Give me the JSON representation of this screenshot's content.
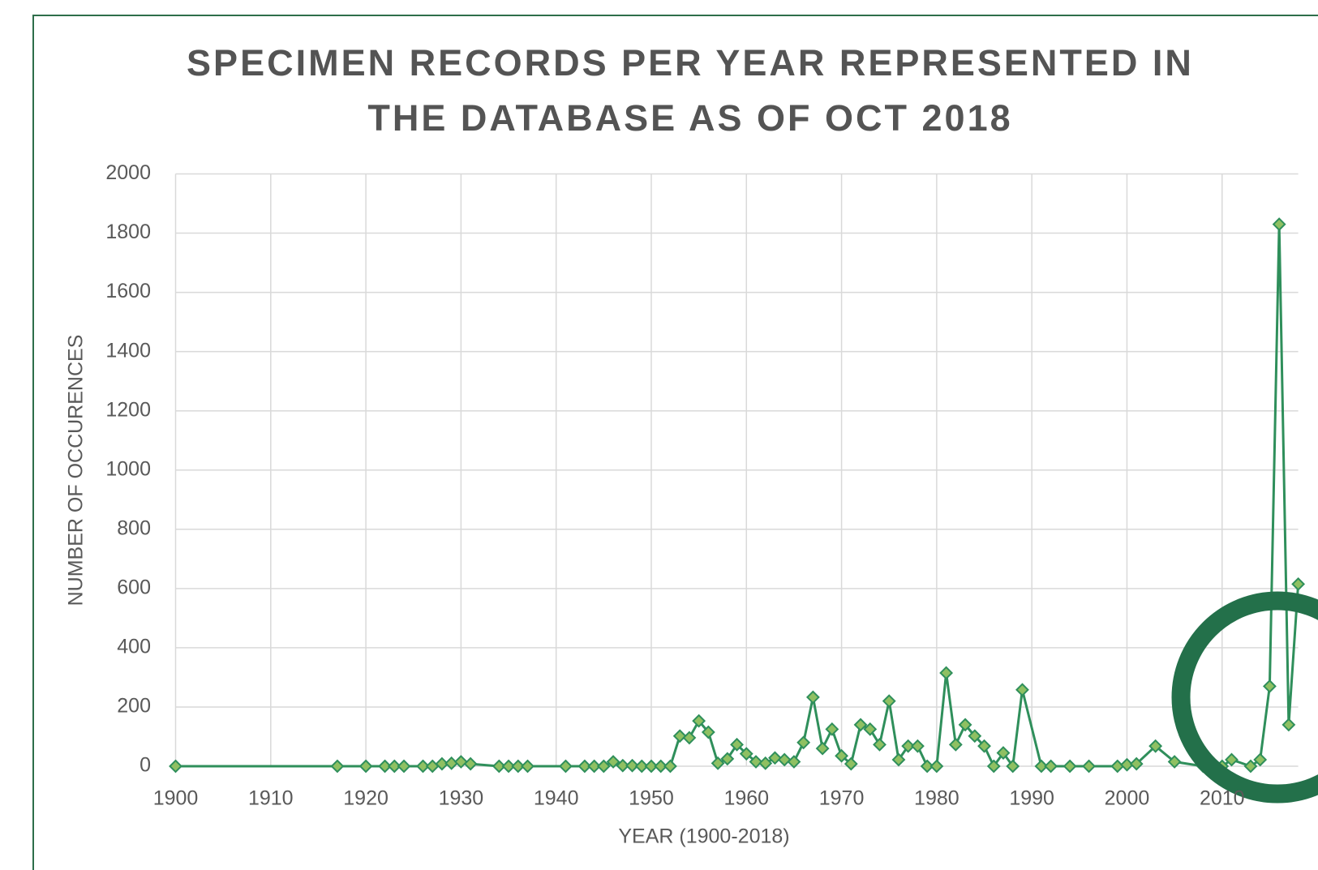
{
  "chart_data": {
    "type": "line",
    "title": "SPECIMEN RECORDS PER YEAR REPRESENTED IN THE DATABASE AS OF OCT 2018",
    "xlabel": "YEAR (1900-2018)",
    "ylabel": "NUMBER OF OCCURENCES",
    "x": [
      1900,
      1917,
      1920,
      1922,
      1923,
      1924,
      1926,
      1927,
      1928,
      1929,
      1930,
      1931,
      1934,
      1935,
      1936,
      1937,
      1941,
      1943,
      1944,
      1945,
      1946,
      1947,
      1948,
      1949,
      1950,
      1951,
      1952,
      1953,
      1954,
      1955,
      1956,
      1957,
      1958,
      1959,
      1960,
      1961,
      1962,
      1963,
      1964,
      1965,
      1966,
      1967,
      1968,
      1969,
      1970,
      1971,
      1972,
      1973,
      1974,
      1975,
      1976,
      1977,
      1978,
      1979,
      1980,
      1981,
      1982,
      1983,
      1984,
      1985,
      1986,
      1987,
      1988,
      1989,
      1991,
      1992,
      1994,
      1996,
      1999,
      2000,
      2001,
      2003,
      2005,
      2008,
      2009,
      2010,
      2011,
      2013,
      2014,
      2015,
      2016,
      2017,
      2018
    ],
    "series": [
      {
        "name": "Records",
        "color": "#2f8f5b",
        "marker_color": "#8fc062",
        "values": [
          0,
          0,
          0,
          0,
          0,
          0,
          0,
          0,
          8,
          10,
          15,
          8,
          0,
          0,
          0,
          0,
          0,
          0,
          0,
          0,
          15,
          2,
          2,
          0,
          0,
          0,
          0,
          102,
          96,
          153,
          115,
          10,
          25,
          73,
          42,
          15,
          10,
          28,
          22,
          15,
          80,
          233,
          60,
          125,
          35,
          8,
          140,
          125,
          73,
          220,
          22,
          68,
          68,
          0,
          0,
          315,
          73,
          140,
          102,
          68,
          0,
          45,
          0,
          258,
          0,
          0,
          0,
          0,
          0,
          5,
          8,
          68,
          15,
          0,
          0,
          0,
          22,
          0,
          22,
          270,
          1830,
          140,
          615
        ]
      }
    ],
    "xlim": [
      1900,
      2018
    ],
    "xticks": [
      1900,
      1910,
      1920,
      1930,
      1940,
      1950,
      1960,
      1970,
      1980,
      1990,
      2000,
      2010
    ],
    "ylim": [
      0,
      2000
    ],
    "yticks": [
      0,
      200,
      400,
      600,
      800,
      1000,
      1200,
      1400,
      1600,
      1800,
      2000
    ],
    "grid": true
  }
}
